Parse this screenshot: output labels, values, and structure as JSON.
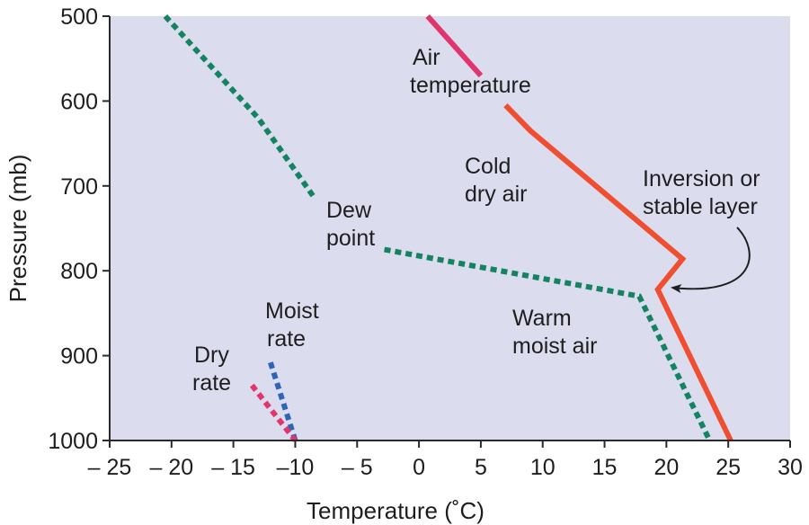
{
  "colors": {
    "plot_background": "#dcdcef",
    "air_temperature": "#ef4e30",
    "air_temperature_upper": "#e0366b",
    "dew_point": "#14835f",
    "moist_rate": "#2e65b7",
    "dry_rate": "#e0376b",
    "annotation_arrow": "#1e1e1e"
  },
  "chart_data": {
    "type": "line",
    "xlabel": "Temperature (˚C)",
    "ylabel": "Pressure (mb)",
    "xlim": [
      -25,
      30
    ],
    "ylim": [
      1000,
      500
    ],
    "x_ticks": [
      -25,
      -20,
      -15,
      -10,
      -5,
      0,
      5,
      10,
      15,
      20,
      25,
      30
    ],
    "x_tick_labels": [
      "– 25",
      "– 20",
      "– 15",
      "–10",
      "– 5",
      "0",
      "5",
      "10",
      "15",
      "20",
      "25",
      "30"
    ],
    "y_ticks": [
      500,
      600,
      700,
      800,
      900,
      1000
    ],
    "y_tick_labels": [
      "500",
      "600",
      "700",
      "800",
      "900",
      "1000"
    ],
    "grid": false,
    "series": [
      {
        "name": "Air temperature",
        "style": "solid",
        "color": "#e0366b",
        "points": [
          [
            0.7,
            500
          ],
          [
            5.0,
            570
          ]
        ]
      },
      {
        "name": "Air temperature",
        "style": "solid",
        "color": "#ef4e30",
        "points": [
          [
            7.0,
            605
          ],
          [
            9.0,
            635
          ],
          [
            21.3,
            786
          ],
          [
            19.3,
            822
          ],
          [
            25.2,
            1000
          ]
        ]
      },
      {
        "name": "Dew point",
        "style": "dotted",
        "color": "#14835f",
        "points": [
          [
            -20.5,
            500
          ],
          [
            -13.0,
            620
          ],
          [
            -8.5,
            713
          ]
        ]
      },
      {
        "name": "Dew point",
        "style": "dotted",
        "color": "#14835f",
        "points": [
          [
            -2.8,
            775
          ],
          [
            17.8,
            830
          ],
          [
            23.5,
            1000
          ]
        ]
      },
      {
        "name": "Moist rate",
        "style": "dotted",
        "color": "#2e65b7",
        "points": [
          [
            -12.0,
            908
          ],
          [
            -10.0,
            1000
          ]
        ]
      },
      {
        "name": "Dry rate",
        "style": "dotted",
        "color": "#e0376b",
        "points": [
          [
            -13.5,
            935
          ],
          [
            -10.0,
            1000
          ]
        ]
      }
    ],
    "annotations": [
      {
        "lines": [
          "Air",
          "temperature"
        ]
      },
      {
        "lines": [
          "Cold",
          "dry air"
        ]
      },
      {
        "lines": [
          "Inversion or",
          "stable layer"
        ]
      },
      {
        "lines": [
          "Dew",
          "point"
        ]
      },
      {
        "lines": [
          "Warm",
          "moist air"
        ]
      },
      {
        "lines": [
          "Moist",
          "rate"
        ]
      },
      {
        "lines": [
          "Dry",
          "rate"
        ]
      }
    ]
  }
}
